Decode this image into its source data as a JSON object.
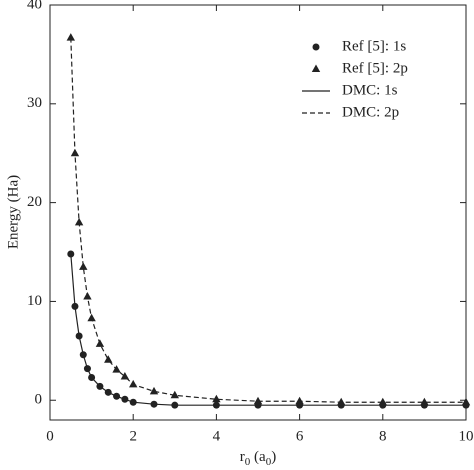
{
  "chart_data": {
    "type": "line",
    "y_label": "Energy (Ha)",
    "x_label": [
      "r",
      "0",
      " (a",
      "0",
      ")"
    ],
    "x": [
      0.5,
      0.6,
      0.7,
      0.8,
      0.9,
      1.0,
      1.2,
      1.4,
      1.6,
      1.8,
      2.0,
      2.5,
      3,
      4,
      5,
      6,
      7,
      8,
      9,
      10
    ],
    "series": [
      {
        "name": "Ref [5]: 1s",
        "style": "circle",
        "color": "#222",
        "values": [
          14.8,
          9.5,
          6.5,
          4.6,
          3.2,
          2.3,
          1.4,
          0.8,
          0.4,
          0.1,
          -0.2,
          -0.4,
          -0.5,
          -0.5,
          -0.5,
          -0.5,
          -0.5,
          -0.5,
          -0.5,
          -0.5
        ]
      },
      {
        "name": "Ref [5]: 2p",
        "style": "triangle",
        "color": "#222",
        "values": [
          36.7,
          25,
          18,
          13.5,
          10.5,
          8.3,
          5.7,
          4.1,
          3.1,
          2.4,
          1.6,
          0.9,
          0.5,
          0.1,
          -0.1,
          -0.1,
          -0.2,
          -0.2,
          -0.2,
          -0.2
        ]
      },
      {
        "name": "DMC: 1s",
        "style": "solid",
        "color": "#222",
        "values": [
          14.8,
          9.5,
          6.5,
          4.6,
          3.2,
          2.3,
          1.4,
          0.8,
          0.4,
          0.1,
          -0.2,
          -0.4,
          -0.5,
          -0.5,
          -0.5,
          -0.5,
          -0.5,
          -0.5,
          -0.5,
          -0.5
        ]
      },
      {
        "name": "DMC: 2p",
        "style": "dashed",
        "color": "#222",
        "values": [
          36.7,
          25,
          18,
          13.5,
          10.5,
          8.3,
          5.7,
          4.1,
          3.1,
          2.4,
          1.6,
          0.9,
          0.5,
          0.1,
          -0.1,
          -0.1,
          -0.2,
          -0.2,
          -0.2,
          -0.2
        ]
      }
    ],
    "xlim": [
      0,
      10
    ],
    "ylim": [
      -2,
      40
    ],
    "xticks": [
      0,
      2,
      4,
      6,
      8,
      10
    ],
    "yticks": [
      0,
      10,
      20,
      30,
      40
    ],
    "legend": "top-right",
    "grid": false
  }
}
